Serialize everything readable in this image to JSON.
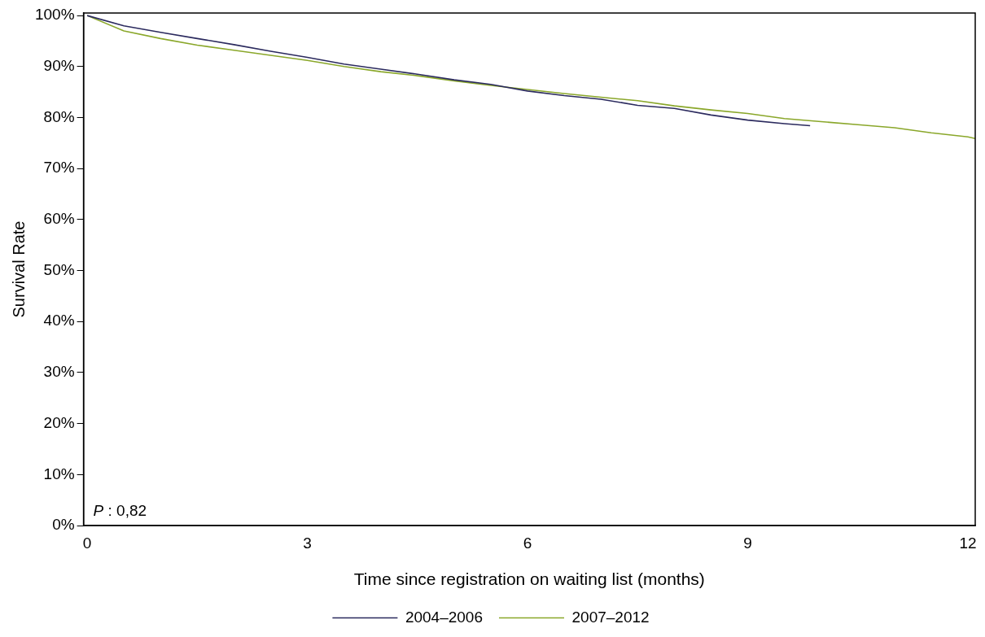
{
  "chart_data": {
    "type": "line",
    "xlabel": "Time since registration on waiting list (months)",
    "ylabel": "Survival Rate",
    "xlim": [
      -0.05,
      12.1
    ],
    "xticks": [
      0,
      3,
      6,
      9,
      12
    ],
    "ylim": [
      0,
      100.5
    ],
    "yticks": [
      {
        "value": 0,
        "label": "0%"
      },
      {
        "value": 10,
        "label": "10%"
      },
      {
        "value": 20,
        "label": "20%"
      },
      {
        "value": 30,
        "label": "30%"
      },
      {
        "value": 40,
        "label": "40%"
      },
      {
        "value": 50,
        "label": "50%"
      },
      {
        "value": 60,
        "label": "60%"
      },
      {
        "value": 70,
        "label": "70%"
      },
      {
        "value": 80,
        "label": "80%"
      },
      {
        "value": 90,
        "label": "90%"
      },
      {
        "value": 100,
        "label": "100%"
      }
    ],
    "grid": false,
    "legend": "bottom",
    "marker": "none",
    "line_style": "solid",
    "annotations": [
      "P : 0,82"
    ],
    "series": [
      {
        "name": "2004–2006",
        "color": "#2b2a5e",
        "x": [
          0,
          0.5,
          1,
          1.5,
          2,
          2.5,
          3,
          3.5,
          4,
          4.5,
          5,
          5.5,
          6,
          6.5,
          7,
          7.5,
          8,
          8.5,
          9,
          9.5,
          9.85
        ],
        "values": [
          100,
          98.0,
          96.7,
          95.5,
          94.3,
          93.0,
          91.8,
          90.5,
          89.5,
          88.5,
          87.4,
          86.5,
          85.2,
          84.3,
          83.6,
          82.4,
          81.8,
          80.5,
          79.5,
          78.8,
          78.4
        ]
      },
      {
        "name": "2007–2012",
        "color": "#8aa72a",
        "x": [
          0,
          0.5,
          1,
          1.5,
          2,
          2.5,
          3,
          3.5,
          4,
          4.5,
          5,
          5.5,
          6,
          6.5,
          7,
          7.5,
          8,
          8.5,
          9,
          9.5,
          10,
          10.5,
          11,
          11.5,
          12,
          12.1
        ],
        "values": [
          100,
          97.0,
          95.5,
          94.2,
          93.2,
          92.2,
          91.2,
          90.0,
          89.0,
          88.2,
          87.2,
          86.3,
          85.5,
          84.7,
          84.0,
          83.3,
          82.3,
          81.5,
          80.8,
          79.8,
          79.2,
          78.6,
          78.0,
          77.0,
          76.2,
          75.9
        ]
      }
    ]
  }
}
